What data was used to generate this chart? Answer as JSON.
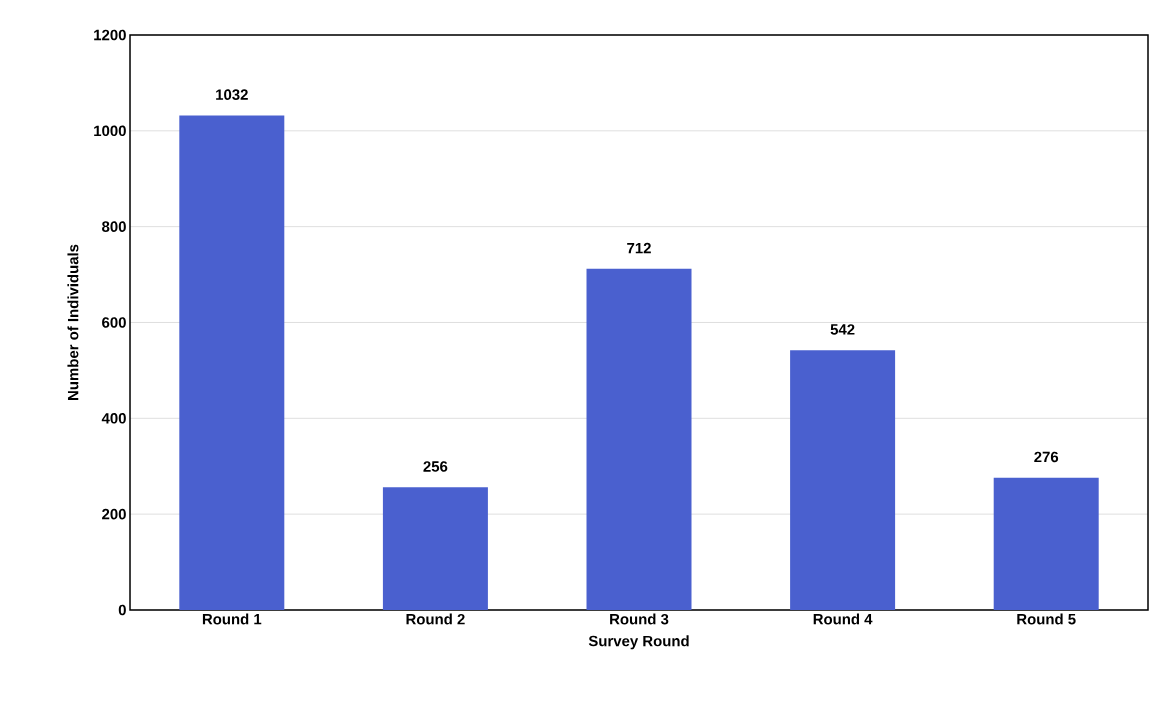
{
  "chart_data": {
    "type": "bar",
    "xlabel": "Survey Round",
    "ylabel": "Number of Individuals",
    "categories": [
      "Round 1",
      "Round 2",
      "Round 3",
      "Round 4",
      "Round 5"
    ],
    "values": [
      1032,
      256,
      712,
      542,
      276
    ],
    "color": "#4a60cf",
    "ylim": [
      0,
      1200
    ],
    "yticks": [
      0,
      200,
      400,
      600,
      800,
      1000,
      1200
    ],
    "grid": "y",
    "data_labels": true
  }
}
